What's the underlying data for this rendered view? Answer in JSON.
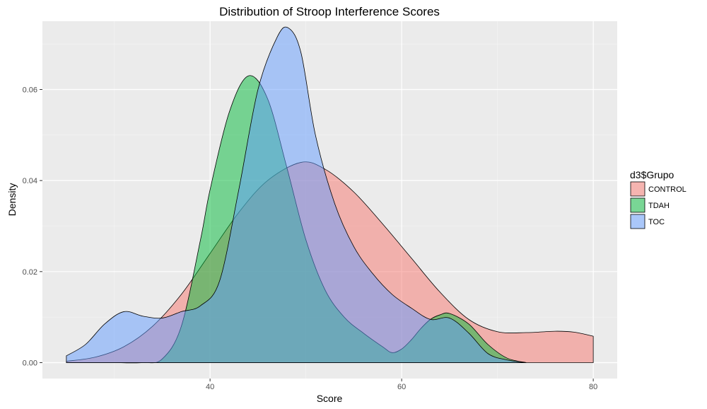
{
  "chart_data": {
    "type": "area",
    "title": "Distribution of Stroop Interference Scores",
    "xlabel": "Score",
    "ylabel": "Density",
    "xlim": [
      22.5,
      82.5
    ],
    "ylim": [
      -0.0035,
      0.075
    ],
    "x_ticks": [
      40,
      60,
      80
    ],
    "x_tick_labels": [
      "40",
      "60",
      "80"
    ],
    "y_ticks": [
      0,
      0.02,
      0.04,
      0.06
    ],
    "y_tick_labels": [
      "0.00",
      "0.02",
      "0.04",
      "0.06"
    ],
    "grid": true,
    "legend": {
      "title": "d3$Grupo",
      "position": "right"
    },
    "series": [
      {
        "name": "CONTROL",
        "color": "#F8766D",
        "x": [
          25,
          28,
          31,
          34,
          37,
          40,
          43,
          46,
          49.5,
          52,
          55,
          58,
          61,
          64,
          67,
          70,
          73,
          76,
          78,
          80
        ],
        "y": [
          0.0003,
          0.0012,
          0.0035,
          0.008,
          0.015,
          0.024,
          0.033,
          0.04,
          0.044,
          0.0425,
          0.0375,
          0.0305,
          0.023,
          0.0155,
          0.0095,
          0.0068,
          0.0066,
          0.0069,
          0.0067,
          0.0058
        ]
      },
      {
        "name": "TDAH",
        "color": "#00BA38",
        "x": [
          25,
          27,
          30,
          33,
          35,
          37,
          39,
          40,
          42,
          44,
          46,
          48,
          50,
          52,
          54,
          56,
          58,
          59,
          60,
          61,
          62,
          63,
          64,
          65,
          67,
          69,
          71,
          73
        ],
        "y": [
          0.0,
          0.0,
          0.0,
          0.0,
          0.0008,
          0.008,
          0.027,
          0.038,
          0.055,
          0.063,
          0.058,
          0.043,
          0.027,
          0.016,
          0.01,
          0.0065,
          0.0035,
          0.0022,
          0.003,
          0.005,
          0.0075,
          0.0095,
          0.0105,
          0.0108,
          0.0085,
          0.004,
          0.001,
          0.0
        ]
      },
      {
        "name": "TOC",
        "color": "#619CFF",
        "x": [
          25,
          27,
          29,
          31,
          33,
          35,
          37,
          39,
          41,
          43,
          45,
          47,
          48.2,
          49.5,
          51,
          53,
          55,
          57,
          59,
          61,
          63,
          65,
          67,
          69,
          71,
          73
        ],
        "y": [
          0.0015,
          0.004,
          0.0085,
          0.0112,
          0.0102,
          0.0098,
          0.0112,
          0.0125,
          0.018,
          0.038,
          0.06,
          0.0715,
          0.0735,
          0.068,
          0.05,
          0.035,
          0.0255,
          0.0195,
          0.015,
          0.012,
          0.0095,
          0.0098,
          0.0065,
          0.002,
          0.0006,
          0.0
        ]
      }
    ]
  }
}
